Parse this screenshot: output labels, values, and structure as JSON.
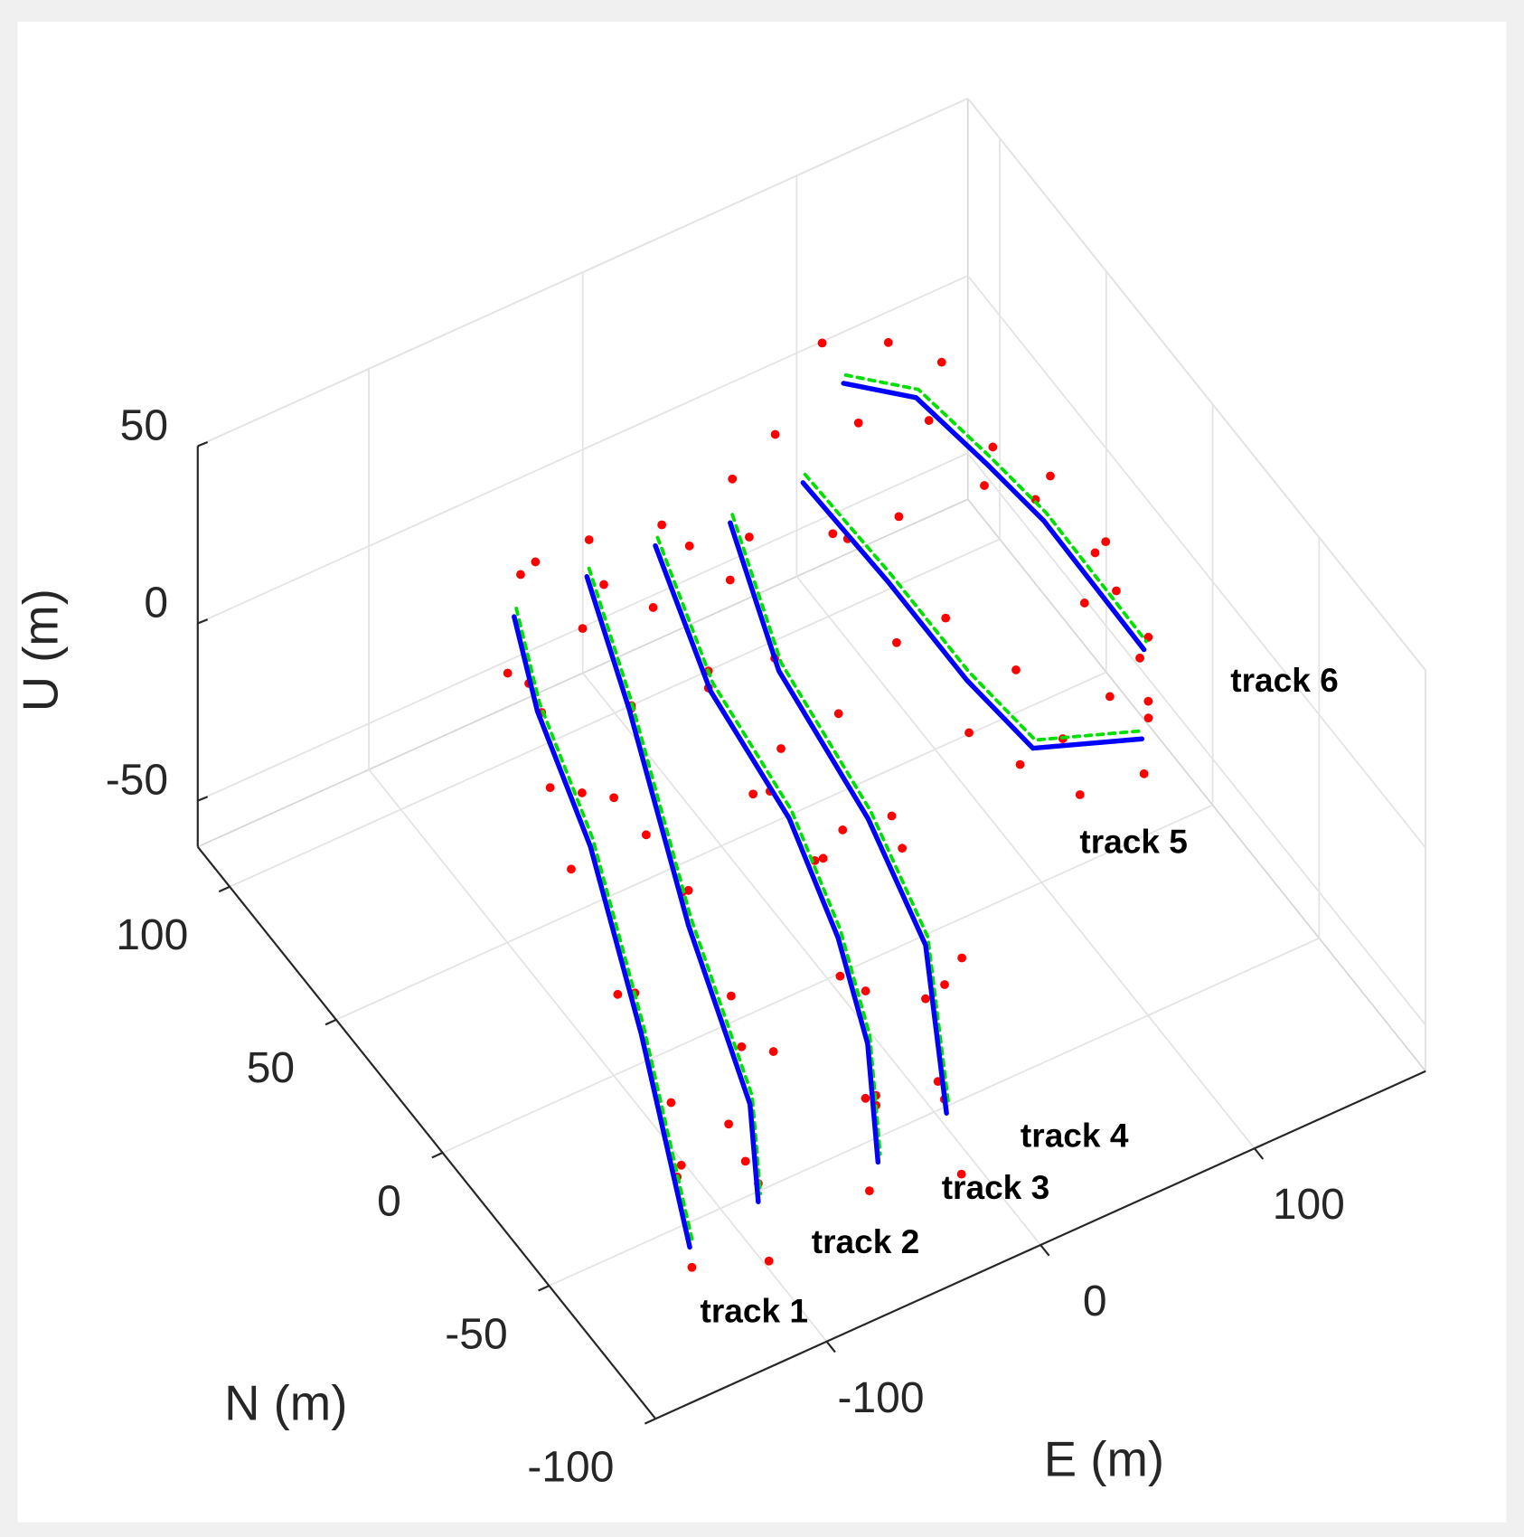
{
  "chart_data": {
    "type": "scatter3d",
    "xlabel": "E (m)",
    "ylabel": "N (m)",
    "zlabel": "U (m)",
    "xlim": [
      -180,
      180
    ],
    "ylim": [
      -100,
      115
    ],
    "zlim": [
      -63,
      50
    ],
    "xticks": [
      -100,
      0,
      100
    ],
    "yticks": [
      -100,
      -50,
      0,
      50,
      100
    ],
    "zticks": [
      -50,
      0,
      50
    ],
    "grid": true,
    "points": {
      "color": "#ff0000",
      "x": [
        -44,
        -58,
        -52,
        -62,
        -75,
        -70,
        -80,
        -92,
        -85,
        -110,
        -128,
        -118,
        -150,
        -158,
        -160,
        -8,
        -20,
        -25,
        -30,
        -42,
        -50,
        -68,
        -80,
        -70,
        -95,
        -108,
        -100,
        -120,
        -130,
        -125,
        24,
        10,
        15,
        2,
        -8,
        -5,
        -15,
        -6,
        -22,
        -32,
        -40,
        -52,
        -62,
        -72,
        -78,
        55,
        44,
        38,
        30,
        20,
        25,
        12,
        20,
        5,
        -4,
        8,
        -15,
        -30,
        -40,
        -35,
        80,
        92,
        84,
        95,
        82,
        90,
        86,
        96,
        88,
        100,
        110,
        118,
        128,
        138,
        125,
        92,
        102,
        110,
        122,
        118,
        128,
        122,
        132,
        126,
        135,
        130,
        125,
        134,
        128,
        120
      ],
      "y": [
        100,
        92,
        85,
        72,
        65,
        60,
        35,
        28,
        15,
        -20,
        -30,
        -45,
        -80,
        -90,
        -97,
        104,
        95,
        80,
        62,
        50,
        35,
        0,
        -15,
        -25,
        -55,
        -62,
        -75,
        -88,
        -92,
        -98,
        102,
        92,
        80,
        58,
        48,
        30,
        12,
        0,
        -20,
        -38,
        -58,
        -70,
        -85,
        -95,
        -98,
        100,
        90,
        75,
        55,
        42,
        20,
        5,
        -10,
        -30,
        -50,
        -55,
        -70,
        -85,
        -92,
        -98,
        105,
        90,
        75,
        62,
        50,
        35,
        20,
        8,
        -2,
        -10,
        -8,
        -14,
        -20,
        -12,
        -25,
        95,
        88,
        82,
        75,
        65,
        55,
        45,
        35,
        22,
        15,
        5,
        -5,
        -12,
        -22,
        -15
      ],
      "z": [
        -12,
        -30,
        5,
        -25,
        -8,
        -35,
        -15,
        -28,
        0,
        -22,
        -10,
        -32,
        -18,
        -5,
        -28,
        -15,
        -30,
        -5,
        -25,
        -12,
        -35,
        -20,
        -5,
        -30,
        -15,
        -28,
        0,
        -22,
        -10,
        -35,
        -18,
        -30,
        -5,
        -25,
        -10,
        -32,
        -15,
        -28,
        -8,
        -25,
        -12,
        -30,
        -18,
        -5,
        -28,
        -12,
        -30,
        -5,
        -22,
        -35,
        -10,
        -28,
        -15,
        -5,
        -30,
        -18,
        -8,
        -25,
        -12,
        -35,
        -10,
        -30,
        -18,
        -5,
        -28,
        -12,
        -32,
        -8,
        -25,
        -15,
        -35,
        -5,
        -25,
        -18,
        0,
        20,
        0,
        25,
        5,
        30,
        0,
        20,
        10,
        28,
        -5,
        18,
        30,
        0,
        15,
        25
      ]
    },
    "estimates": {
      "color": "#0000ff",
      "tracks": [
        {
          "x": [
            -50,
            -68,
            -87,
            -121,
            -163
          ],
          "y": [
            97,
            68,
            24,
            -34,
            -99
          ],
          "z": [
            -20,
            -20,
            -20,
            -20,
            -20
          ]
        },
        {
          "x": [
            -14,
            -36,
            -75,
            -103,
            -127
          ],
          "y": [
            99,
            57,
            -10,
            -67,
            -95
          ],
          "z": [
            -20,
            -20,
            -20,
            -20,
            -20
          ]
        },
        {
          "x": [
            18,
            -3,
            -11,
            -27,
            -46,
            -75
          ],
          "y": [
            99,
            52,
            7,
            -32,
            -65,
            -99
          ],
          "z": [
            -20,
            -20,
            -20,
            -20,
            -20,
            -20
          ]
        },
        {
          "x": [
            50,
            26,
            16,
            1,
            -38
          ],
          "y": [
            96,
            49,
            -3,
            -45,
            -94
          ],
          "z": [
            -20,
            -20,
            -20,
            -20,
            -20
          ]
        },
        {
          "x": [
            86,
            88,
            88,
            92,
            132
          ],
          "y": [
            98,
            60,
            23,
            -4,
            -15
          ],
          "z": [
            -20,
            -20,
            -20,
            -20,
            -20
          ]
        },
        {
          "x": [
            98,
            119,
            125,
            129,
            128
          ],
          "y": [
            91,
            78,
            51,
            28,
            -20
          ],
          "z": [
            10,
            10,
            10,
            10,
            10
          ]
        }
      ]
    },
    "references": {
      "color": "#00e000",
      "tracks": [
        {
          "x": [
            -47,
            -65,
            -84,
            -118,
            -160
          ],
          "y": [
            99,
            70,
            26,
            -32,
            -97
          ],
          "z": [
            -20,
            -20,
            -20,
            -20,
            -20
          ]
        },
        {
          "x": [
            -11,
            -33,
            -72,
            -100,
            -124
          ],
          "y": [
            101,
            59,
            -8,
            -65,
            -93
          ],
          "z": [
            -20,
            -20,
            -20,
            -20,
            -20
          ]
        },
        {
          "x": [
            21,
            0,
            -8,
            -24,
            -43,
            -72
          ],
          "y": [
            101,
            54,
            9,
            -30,
            -63,
            -97
          ],
          "z": [
            -20,
            -20,
            -20,
            -20,
            -20,
            -20
          ]
        },
        {
          "x": [
            53,
            29,
            19,
            4,
            -35
          ],
          "y": [
            98,
            51,
            -1,
            -43,
            -92
          ],
          "z": [
            -20,
            -20,
            -20,
            -20,
            -20
          ]
        },
        {
          "x": [
            89,
            91,
            91,
            95,
            135
          ],
          "y": [
            100,
            62,
            25,
            -2,
            -13
          ],
          "z": [
            -20,
            -20,
            -20,
            -20,
            -20
          ]
        },
        {
          "x": [
            101,
            122,
            128,
            132,
            131
          ],
          "y": [
            93,
            80,
            53,
            30,
            -18
          ],
          "z": [
            10,
            10,
            10,
            10,
            10
          ]
        }
      ]
    },
    "annotations": [
      "track 1",
      "track 2",
      "track 3",
      "track 4",
      "track 5",
      "track 6"
    ]
  }
}
